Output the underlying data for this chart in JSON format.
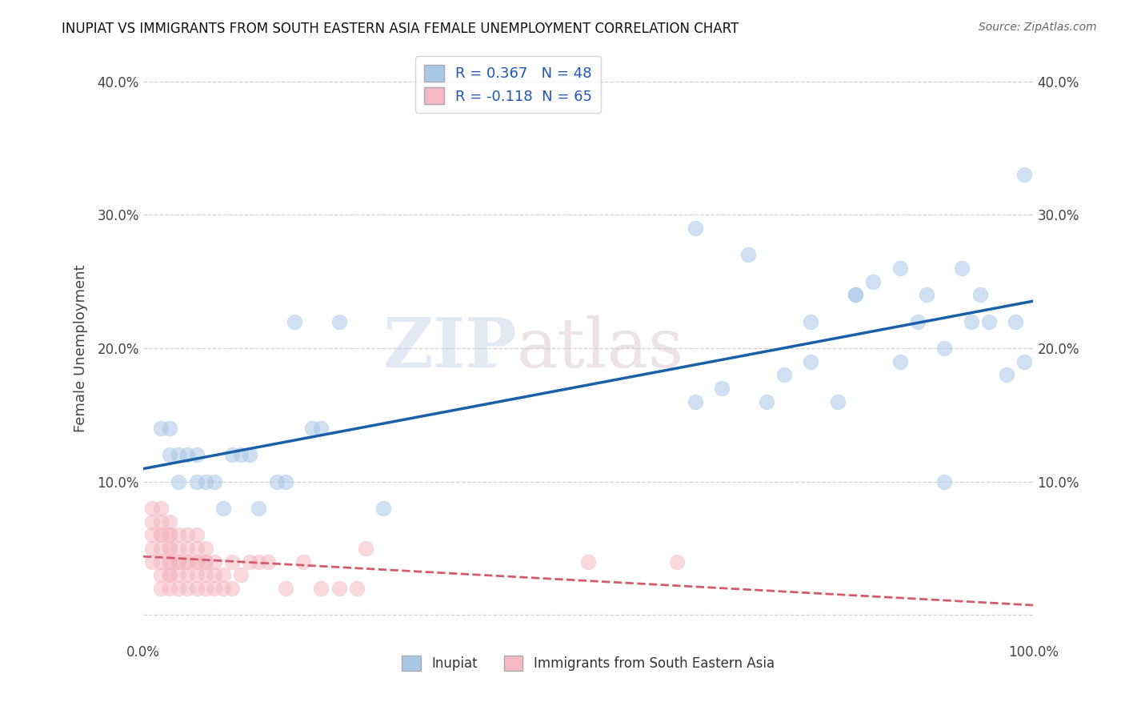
{
  "title": "INUPIAT VS IMMIGRANTS FROM SOUTH EASTERN ASIA FEMALE UNEMPLOYMENT CORRELATION CHART",
  "source": "Source: ZipAtlas.com",
  "ylabel": "Female Unemployment",
  "legend1_label": "Inupiat",
  "legend2_label": "Immigrants from South Eastern Asia",
  "R1": 0.367,
  "N1": 48,
  "R2": -0.118,
  "N2": 65,
  "blue_scatter_color": "#a8c8e8",
  "pink_scatter_color": "#f5b8c4",
  "blue_line_color": "#1a5fa8",
  "pink_line_color": "#d45a6e",
  "inupiat_x": [
    0.02,
    0.03,
    0.03,
    0.04,
    0.04,
    0.05,
    0.06,
    0.06,
    0.07,
    0.08,
    0.09,
    0.1,
    0.11,
    0.12,
    0.13,
    0.15,
    0.16,
    0.17,
    0.19,
    0.2,
    0.22,
    0.27,
    0.62,
    0.65,
    0.68,
    0.72,
    0.75,
    0.78,
    0.8,
    0.82,
    0.85,
    0.87,
    0.88,
    0.9,
    0.92,
    0.93,
    0.94,
    0.95,
    0.97,
    0.98,
    0.99,
    0.99,
    0.62,
    0.7,
    0.75,
    0.8,
    0.85,
    0.9
  ],
  "inupiat_y": [
    0.14,
    0.14,
    0.12,
    0.1,
    0.12,
    0.12,
    0.1,
    0.12,
    0.1,
    0.1,
    0.08,
    0.12,
    0.12,
    0.12,
    0.08,
    0.1,
    0.1,
    0.22,
    0.14,
    0.14,
    0.22,
    0.08,
    0.16,
    0.17,
    0.27,
    0.18,
    0.22,
    0.16,
    0.24,
    0.25,
    0.26,
    0.22,
    0.24,
    0.1,
    0.26,
    0.22,
    0.24,
    0.22,
    0.18,
    0.22,
    0.19,
    0.33,
    0.29,
    0.16,
    0.19,
    0.24,
    0.19,
    0.2
  ],
  "sea_x": [
    0.01,
    0.01,
    0.01,
    0.01,
    0.01,
    0.02,
    0.02,
    0.02,
    0.02,
    0.02,
    0.02,
    0.02,
    0.02,
    0.03,
    0.03,
    0.03,
    0.03,
    0.03,
    0.03,
    0.03,
    0.03,
    0.03,
    0.03,
    0.04,
    0.04,
    0.04,
    0.04,
    0.04,
    0.04,
    0.05,
    0.05,
    0.05,
    0.05,
    0.05,
    0.05,
    0.06,
    0.06,
    0.06,
    0.06,
    0.06,
    0.06,
    0.07,
    0.07,
    0.07,
    0.07,
    0.07,
    0.08,
    0.08,
    0.08,
    0.09,
    0.09,
    0.1,
    0.1,
    0.11,
    0.12,
    0.13,
    0.14,
    0.16,
    0.18,
    0.2,
    0.22,
    0.24,
    0.5,
    0.6,
    0.25
  ],
  "sea_y": [
    0.04,
    0.05,
    0.06,
    0.07,
    0.08,
    0.02,
    0.03,
    0.04,
    0.05,
    0.06,
    0.07,
    0.08,
    0.06,
    0.02,
    0.03,
    0.04,
    0.05,
    0.06,
    0.07,
    0.04,
    0.05,
    0.03,
    0.06,
    0.02,
    0.03,
    0.04,
    0.05,
    0.06,
    0.04,
    0.02,
    0.03,
    0.04,
    0.05,
    0.06,
    0.04,
    0.02,
    0.03,
    0.04,
    0.05,
    0.06,
    0.04,
    0.02,
    0.03,
    0.04,
    0.05,
    0.04,
    0.02,
    0.03,
    0.04,
    0.02,
    0.03,
    0.02,
    0.04,
    0.03,
    0.04,
    0.04,
    0.04,
    0.02,
    0.04,
    0.02,
    0.02,
    0.02,
    0.04,
    0.04,
    0.05
  ],
  "xlim": [
    0.0,
    1.0
  ],
  "ylim": [
    -0.02,
    0.42
  ],
  "yticks": [
    0.0,
    0.1,
    0.2,
    0.3,
    0.4
  ],
  "watermark_zip": "ZIP",
  "watermark_atlas": "atlas",
  "background_color": "#ffffff",
  "grid_color": "#cccccc",
  "title_fontsize": 12,
  "axis_fontsize": 12,
  "legend_fontsize": 13
}
